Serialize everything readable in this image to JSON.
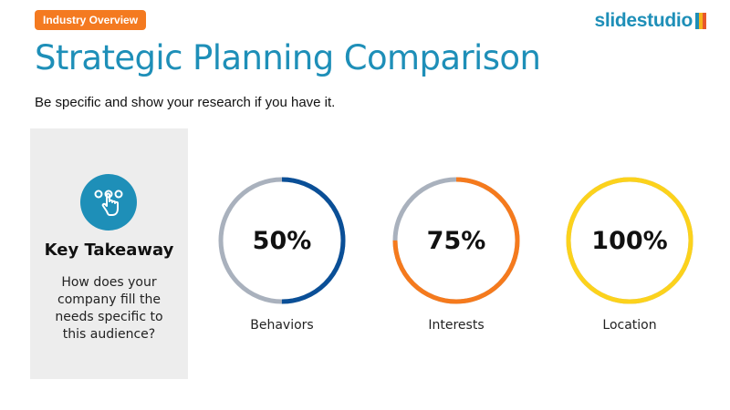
{
  "header": {
    "tag": "Industry Overview",
    "brand": "slidestudio",
    "title": "Strategic Planning Comparison",
    "subtitle": "Be specific and show your research if you have it."
  },
  "takeaway": {
    "icon": "tap-hand-icon",
    "heading": "Key Takeaway",
    "body": "How does your company fill the needs specific to this audience?"
  },
  "gauges": [
    {
      "value_text": "50%",
      "value": 50,
      "label": "Behaviors",
      "color": "#0a4f97",
      "track_color": "#a9b1bd"
    },
    {
      "value_text": "75%",
      "value": 75,
      "label": "Interests",
      "color": "#f57a1d",
      "track_color": "#a9b1bd"
    },
    {
      "value_text": "100%",
      "value": 100,
      "label": "Location",
      "color": "#fcd21c",
      "track_color": "#a9b1bd"
    }
  ],
  "colors": {
    "accent": "#1e8fb8",
    "tag": "#f47a20",
    "panel": "#ededed",
    "brand_mark": [
      "#1e8fb8",
      "#f5b21b",
      "#e8572a"
    ]
  }
}
